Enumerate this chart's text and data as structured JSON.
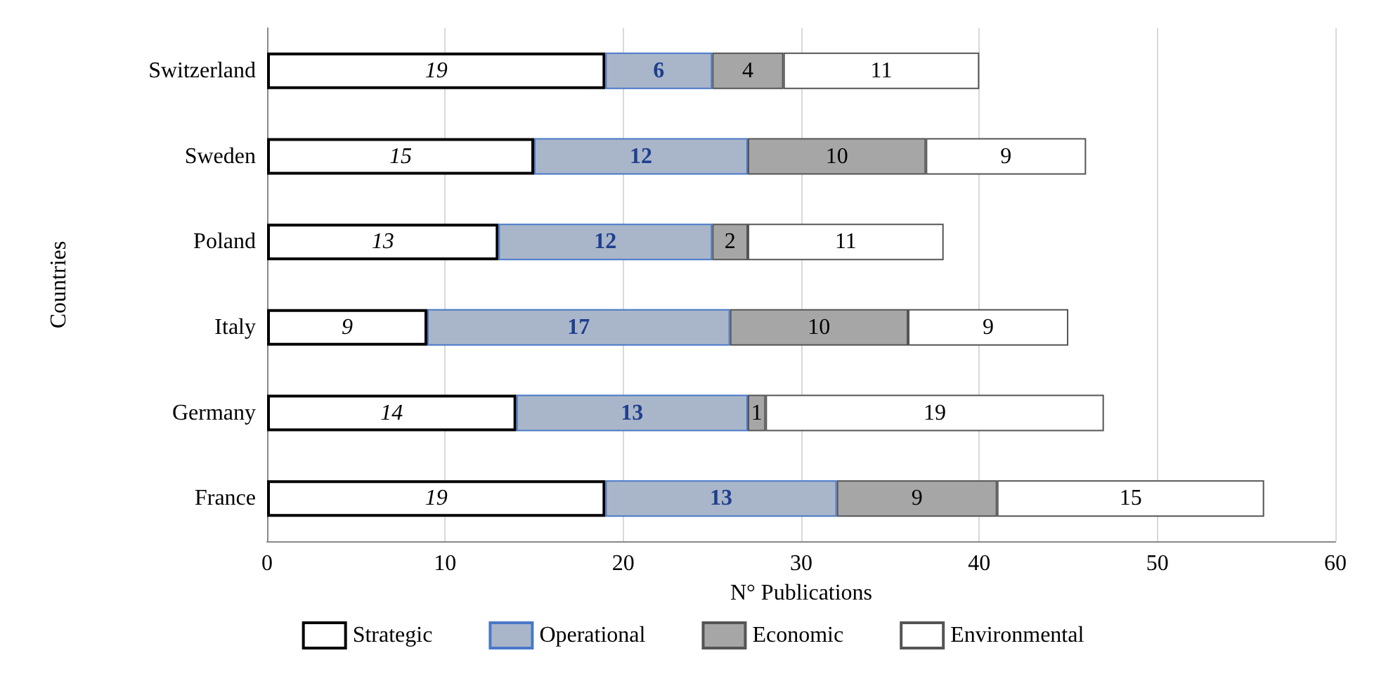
{
  "chart_data": {
    "type": "bar",
    "orientation": "horizontal",
    "stacked": true,
    "xlabel": "N° Publications",
    "ylabel": "Countries",
    "categories": [
      "Switzerland",
      "Sweden",
      "Poland",
      "Italy",
      "Germany",
      "France"
    ],
    "series": [
      {
        "name": "Strategic",
        "color": "#ffffff",
        "values": [
          19,
          15,
          13,
          9,
          14,
          19
        ]
      },
      {
        "name": "Operational",
        "color": "#a9b6c9",
        "values": [
          6,
          12,
          12,
          17,
          13,
          13
        ]
      },
      {
        "name": "Economic",
        "color": "#a6a6a6",
        "values": [
          4,
          10,
          2,
          10,
          1,
          9
        ]
      },
      {
        "name": "Environmental",
        "color": "#ffffff",
        "values": [
          11,
          9,
          11,
          9,
          19,
          15
        ]
      }
    ],
    "xlim": [
      0,
      60
    ],
    "xticks": [
      0,
      10,
      20,
      30,
      40,
      50,
      60
    ],
    "grid": "x",
    "legend": "bottom",
    "data_labels": true
  }
}
